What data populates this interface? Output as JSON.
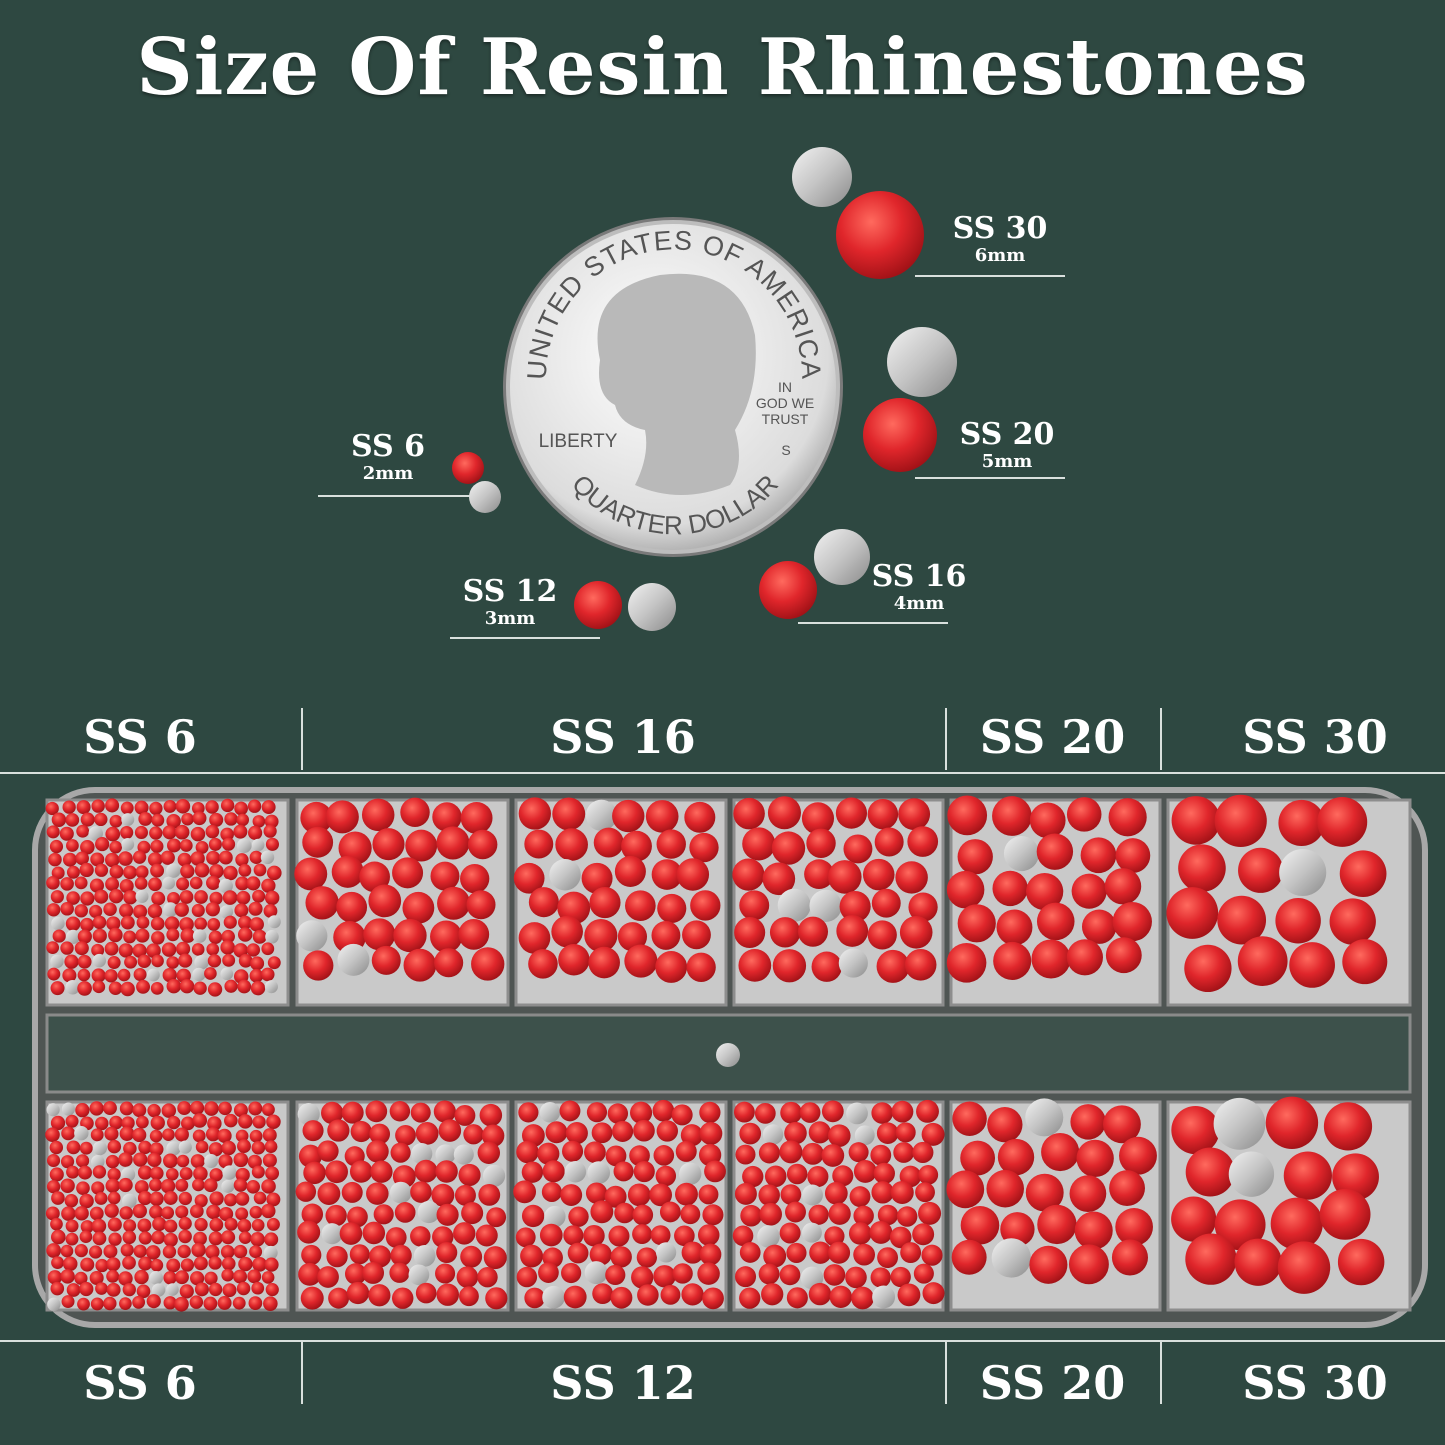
{
  "title": "Size Of Resin Rhinestones",
  "colors": {
    "background": "#2e4841",
    "rhinestone": "#e0262b",
    "silver_back": "#d8d8d8",
    "tray": "#9a9a9a"
  },
  "coin": {
    "top_text": "UNITED STATES OF AMERICA",
    "motto": [
      "IN",
      "GOD WE",
      "TRUST"
    ],
    "liberty": "LIBERTY",
    "mint": "S",
    "bottom_text": "QUARTER DOLLAR"
  },
  "sizes": [
    {
      "name": "SS 30",
      "mm": "6mm"
    },
    {
      "name": "SS 20",
      "mm": "5mm"
    },
    {
      "name": "SS 16",
      "mm": "4mm"
    },
    {
      "name": "SS 12",
      "mm": "3mm"
    },
    {
      "name": "SS 6",
      "mm": "2mm"
    }
  ],
  "tray": {
    "top_headers": [
      "SS 6",
      "SS 16",
      "SS 20",
      "SS 30"
    ],
    "bottom_headers": [
      "SS 6",
      "SS 12",
      "SS 20",
      "SS 30"
    ],
    "top_row": [
      "SS 6",
      "SS 16",
      "SS 16",
      "SS 16",
      "SS 20",
      "SS 30"
    ],
    "bottom_row": [
      "SS 6",
      "SS 12",
      "SS 12",
      "SS 12",
      "SS 20",
      "SS 30"
    ]
  }
}
